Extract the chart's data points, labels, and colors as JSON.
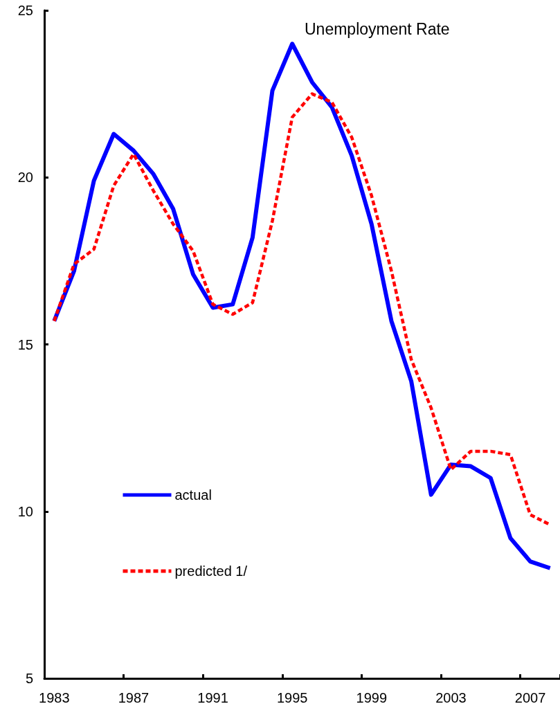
{
  "chart_data": {
    "type": "line",
    "title": "Unemployment Rate",
    "categories": [
      "1983",
      null,
      null,
      null,
      "1987",
      null,
      null,
      null,
      "1991",
      null,
      null,
      null,
      "1995",
      null,
      null,
      null,
      "1999",
      null,
      null,
      null,
      "2003",
      null,
      null,
      null,
      "2007",
      null
    ],
    "series": [
      {
        "name": "actual",
        "color": "#0000ff",
        "line_style": "solid",
        "values": [
          15.7,
          17.2,
          19.9,
          21.3,
          20.8,
          20.1,
          19.05,
          17.1,
          16.1,
          16.2,
          18.2,
          22.6,
          24.0,
          22.85,
          22.1,
          20.65,
          18.6,
          15.7,
          13.9,
          10.5,
          11.4,
          11.35,
          11.0,
          9.2,
          8.5,
          8.3
        ]
      },
      {
        "name": "predicted 1/",
        "color": "#ff0000",
        "line_style": "dashed",
        "values": [
          15.7,
          17.4,
          17.85,
          19.75,
          20.7,
          19.6,
          18.6,
          17.8,
          16.2,
          15.9,
          16.25,
          18.7,
          21.8,
          22.5,
          22.25,
          21.2,
          19.45,
          17.2,
          14.55,
          13.1,
          11.25,
          11.8,
          11.8,
          11.7,
          9.9,
          9.6
        ]
      }
    ],
    "ylim": [
      5,
      25
    ],
    "yticks": [
      5,
      10,
      15,
      20,
      25
    ],
    "grid": false,
    "legend": "bottom left",
    "marker": "none"
  }
}
